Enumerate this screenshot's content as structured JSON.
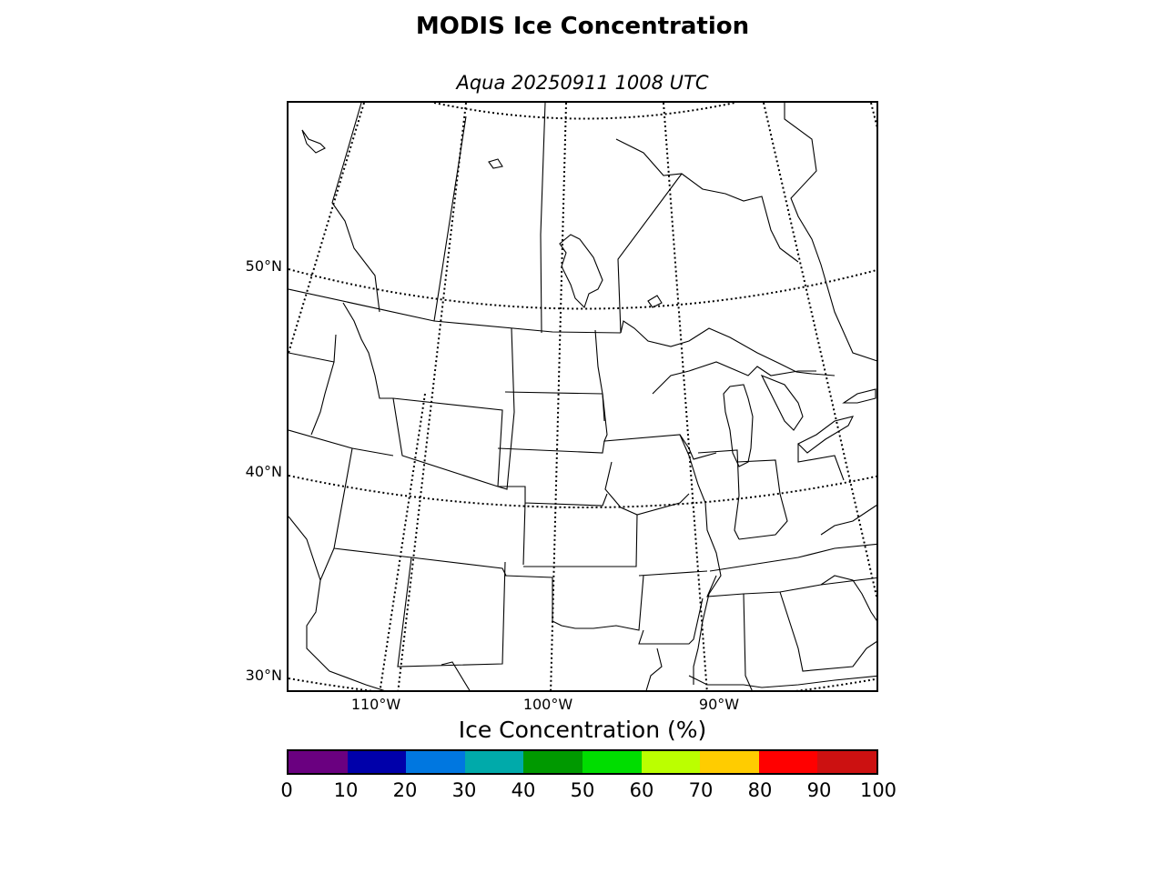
{
  "title": "MODIS Ice Concentration",
  "subtitle": "Aqua 20250911 1008 UTC",
  "map": {
    "lat_labels": [
      "50°N",
      "40°N",
      "30°N"
    ],
    "lon_labels": [
      "110°W",
      "100°W",
      "90°W"
    ],
    "line_color": "#000000",
    "background": "#ffffff"
  },
  "colorbar": {
    "label": "Ice Concentration (%)",
    "ticks": [
      "0",
      "10",
      "20",
      "30",
      "40",
      "50",
      "60",
      "70",
      "80",
      "90",
      "100"
    ],
    "colors": [
      "#6a0080",
      "#0000aa",
      "#0077e0",
      "#00aaaa",
      "#009900",
      "#00dd00",
      "#bbff00",
      "#ffcc00",
      "#ff0000",
      "#cc1111"
    ]
  }
}
